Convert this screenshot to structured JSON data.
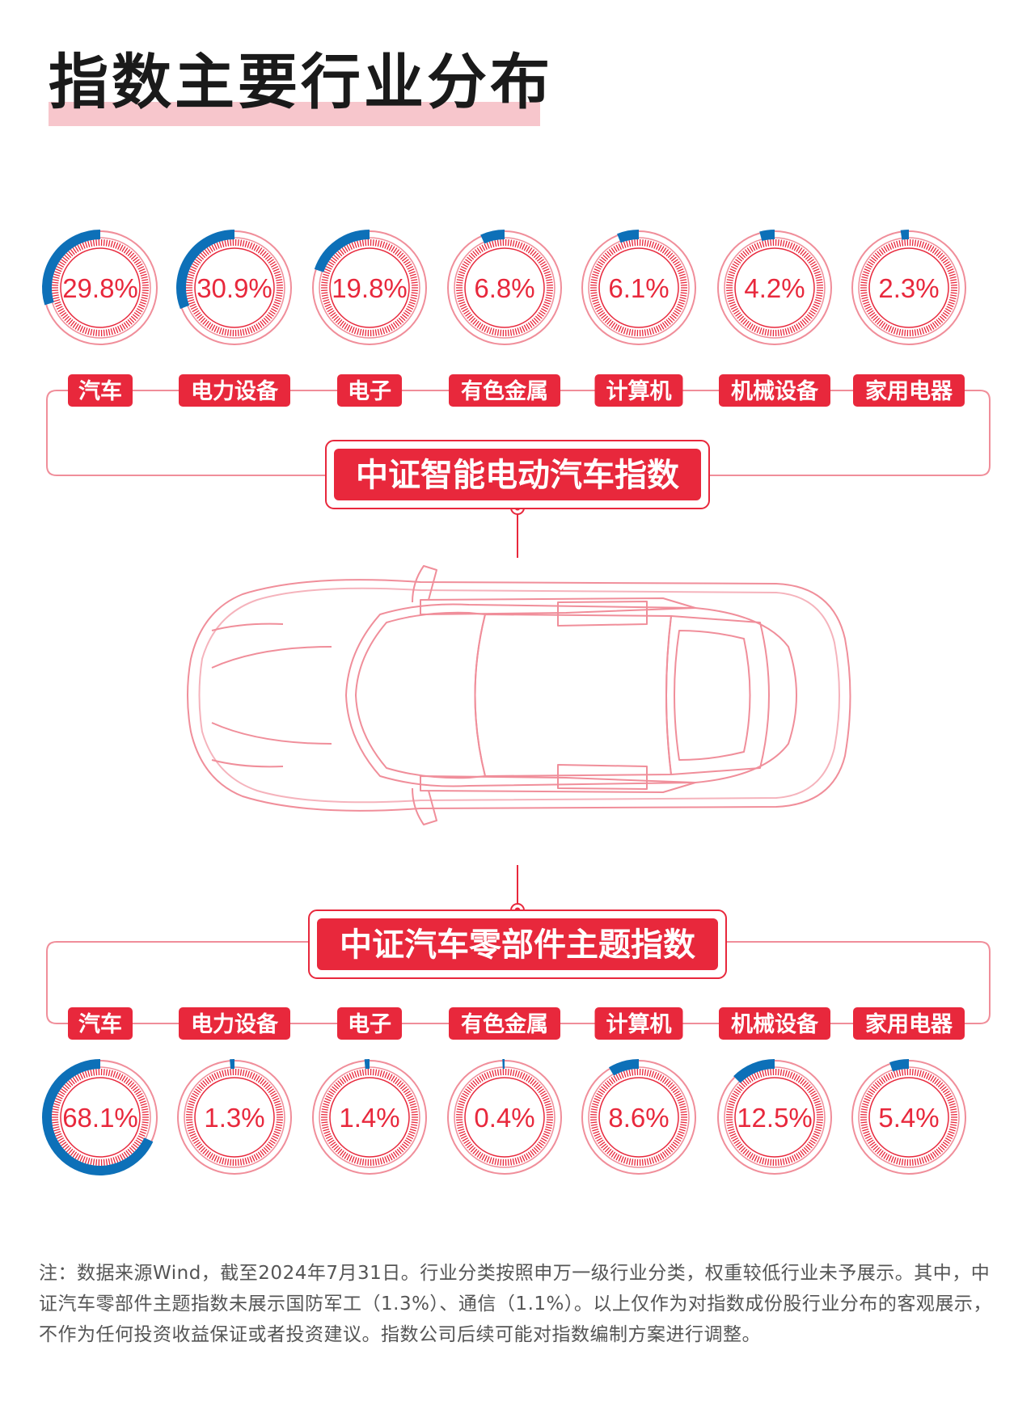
{
  "title": "指数主要行业分布",
  "categories": [
    "汽车",
    "电力设备",
    "电子",
    "有色金属",
    "计算机",
    "机械设备",
    "家用电器"
  ],
  "colors": {
    "red": "#e8283c",
    "light_red": "#f08e9a",
    "blue": "#0d70b8",
    "pink_bar": "#f7c6cc"
  },
  "chart_data": [
    {
      "type": "donut",
      "title": "中证智能电动汽车指数",
      "categories": [
        "汽车",
        "电力设备",
        "电子",
        "有色金属",
        "计算机",
        "机械设备",
        "家用电器"
      ],
      "values": [
        29.8,
        30.9,
        19.8,
        6.8,
        6.1,
        4.2,
        2.3
      ],
      "labels": [
        "29.8%",
        "30.9%",
        "19.8%",
        "6.8%",
        "6.1%",
        "4.2%",
        "2.3%"
      ]
    },
    {
      "type": "donut",
      "title": "中证汽车零部件主题指数",
      "categories": [
        "汽车",
        "电力设备",
        "电子",
        "有色金属",
        "计算机",
        "机械设备",
        "家用电器"
      ],
      "values": [
        68.1,
        1.3,
        1.4,
        0.4,
        8.6,
        12.5,
        5.4
      ],
      "labels": [
        "68.1%",
        "1.3%",
        "1.4%",
        "0.4%",
        "8.6%",
        "12.5%",
        "5.4%"
      ]
    }
  ],
  "note": "注：数据来源Wind，截至2024年7月31日。行业分类按照申万一级行业分类，权重较低行业未予展示。其中，中证汽车零部件主题指数未展示国防军工（1.3%）、通信（1.1%）。以上仅作为对指数成份股行业分布的客观展示，不作为任何投资收益保证或者投资建议。指数公司后续可能对指数编制方案进行调整。"
}
